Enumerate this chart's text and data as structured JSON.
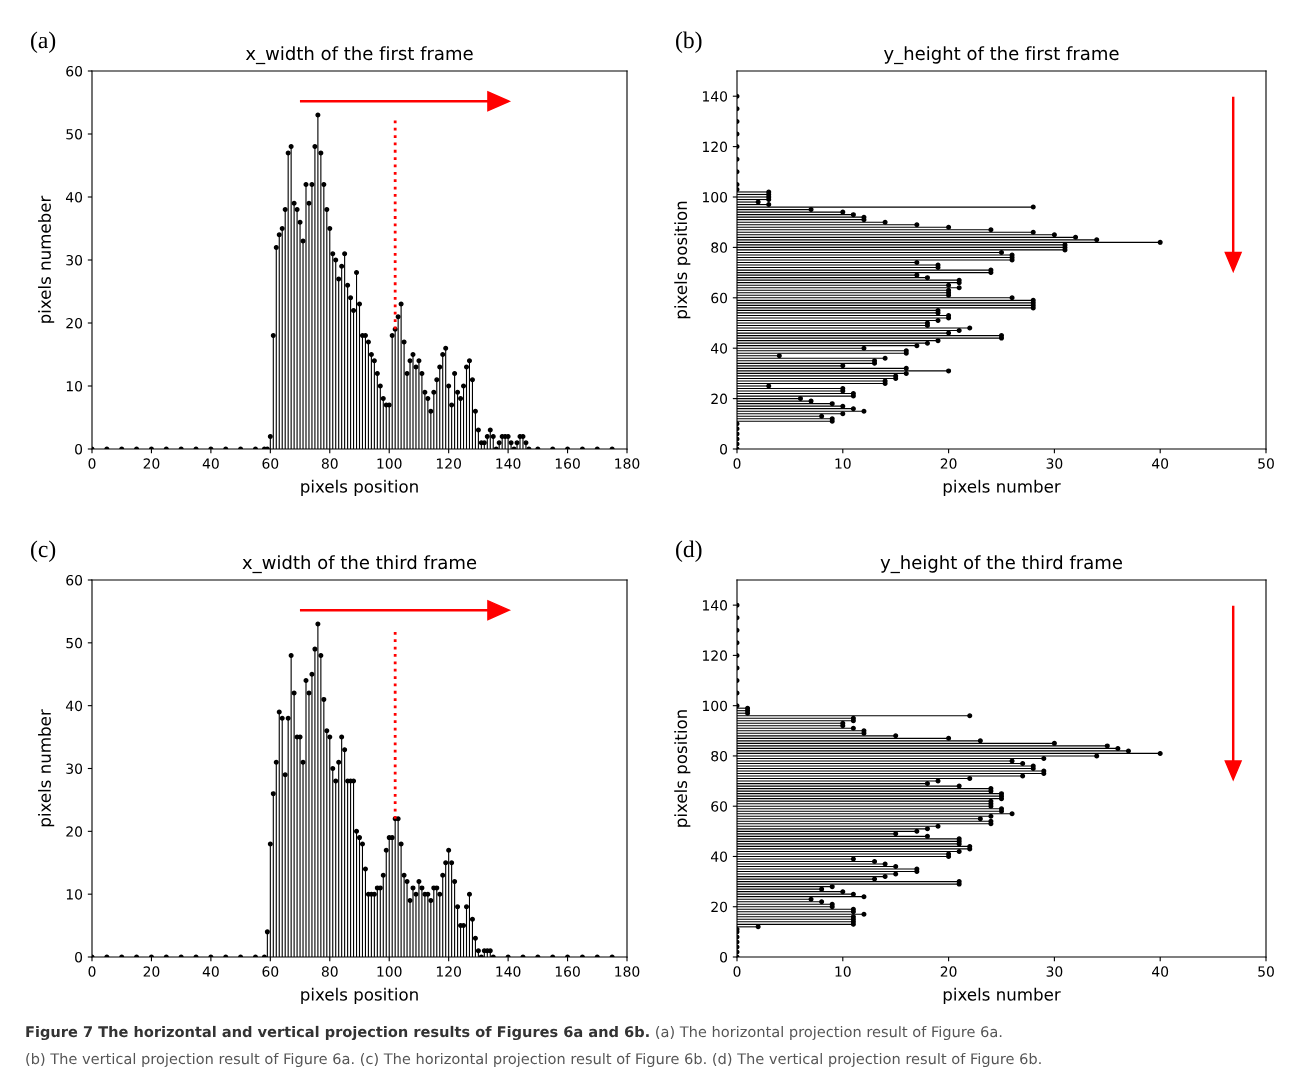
{
  "chart_data": [
    {
      "type": "lollipop",
      "title": "x_width of the first frame",
      "xlabel": "pixels position",
      "ylabel": "pixels numeber",
      "annotations": [
        "(a)"
      ],
      "x": [
        0,
        5,
        10,
        15,
        20,
        25,
        30,
        35,
        40,
        45,
        50,
        55,
        58,
        59,
        60,
        61,
        62,
        63,
        64,
        65,
        66,
        67,
        68,
        69,
        70,
        71,
        72,
        73,
        74,
        75,
        76,
        77,
        78,
        79,
        80,
        81,
        82,
        83,
        84,
        85,
        86,
        87,
        88,
        89,
        90,
        91,
        92,
        93,
        94,
        95,
        96,
        97,
        98,
        99,
        100,
        101,
        102,
        103,
        104,
        105,
        106,
        107,
        108,
        109,
        110,
        111,
        112,
        113,
        114,
        115,
        116,
        117,
        118,
        119,
        120,
        121,
        122,
        123,
        124,
        125,
        126,
        127,
        128,
        129,
        130,
        131,
        132,
        133,
        134,
        135,
        136,
        137,
        138,
        139,
        140,
        141,
        142,
        143,
        144,
        145,
        146,
        147,
        150,
        155,
        160,
        165,
        170,
        175
      ],
      "series": [
        {
          "color": "#000000",
          "values": [
            0,
            0,
            0,
            0,
            0,
            0,
            0,
            0,
            0,
            0,
            0,
            0,
            0,
            0,
            2,
            18,
            32,
            34,
            35,
            38,
            47,
            48,
            39,
            38,
            36,
            33,
            42,
            39,
            42,
            48,
            53,
            47,
            42,
            38,
            35,
            31,
            30,
            27,
            29,
            31,
            26,
            24,
            22,
            28,
            23,
            18,
            18,
            17,
            15,
            14,
            12,
            10,
            8,
            7,
            7,
            18,
            19,
            21,
            23,
            17,
            12,
            14,
            15,
            13,
            14,
            12,
            9,
            8,
            6,
            9,
            11,
            13,
            15,
            16,
            10,
            7,
            12,
            9,
            8,
            10,
            13,
            14,
            11,
            6,
            3,
            1,
            1,
            2,
            3,
            2,
            0,
            1,
            2,
            2,
            2,
            1,
            0,
            1,
            2,
            2,
            1,
            0,
            0,
            0,
            0,
            0,
            0,
            0
          ]
        }
      ],
      "xlim": [
        0,
        180
      ],
      "xticks": [
        0,
        20,
        40,
        60,
        80,
        100,
        120,
        140,
        160,
        180
      ],
      "ylim": [
        0,
        60
      ],
      "yticks": [
        0,
        10,
        20,
        30,
        40,
        50,
        60
      ],
      "ref_lines": [
        {
          "axis": "x",
          "value": 102,
          "color": "#ff0000",
          "line_style": "dotted"
        }
      ],
      "marker": "circle",
      "grid": false
    },
    {
      "type": "lollipop",
      "orientation": "horizontal",
      "title": "y_height of the first frame",
      "xlabel": "pixels number",
      "ylabel": "pixels position",
      "annotations": [
        "(b)"
      ],
      "x": [
        0,
        2,
        4,
        6,
        8,
        10,
        11,
        12,
        13,
        14,
        15,
        16,
        17,
        18,
        19,
        20,
        21,
        22,
        23,
        24,
        25,
        26,
        27,
        28,
        29,
        30,
        31,
        32,
        33,
        34,
        35,
        36,
        37,
        38,
        39,
        40,
        41,
        42,
        43,
        44,
        45,
        46,
        47,
        48,
        49,
        50,
        51,
        52,
        53,
        54,
        55,
        56,
        57,
        58,
        59,
        60,
        61,
        62,
        63,
        64,
        65,
        66,
        67,
        68,
        69,
        70,
        71,
        72,
        73,
        74,
        75,
        76,
        77,
        78,
        79,
        80,
        81,
        82,
        83,
        84,
        85,
        86,
        87,
        88,
        89,
        90,
        91,
        92,
        93,
        94,
        95,
        96,
        97,
        98,
        99,
        100,
        101,
        102,
        103,
        105,
        110,
        115,
        120,
        125,
        130,
        135,
        140
      ],
      "series": [
        {
          "color": "#000000",
          "values": [
            0,
            0,
            0,
            0,
            0,
            0,
            9,
            9,
            8,
            10,
            12,
            11,
            10,
            9,
            7,
            6,
            11,
            11,
            10,
            10,
            3,
            14,
            14,
            15,
            15,
            16,
            20,
            16,
            10,
            13,
            13,
            14,
            4,
            16,
            16,
            12,
            17,
            18,
            19,
            25,
            25,
            20,
            21,
            22,
            18,
            18,
            19,
            20,
            20,
            19,
            19,
            28,
            28,
            28,
            28,
            26,
            20,
            20,
            20,
            21,
            20,
            21,
            21,
            18,
            17,
            24,
            24,
            19,
            19,
            17,
            26,
            26,
            26,
            25,
            31,
            31,
            31,
            40,
            34,
            32,
            30,
            28,
            24,
            20,
            17,
            14,
            12,
            12,
            11,
            10,
            7,
            28,
            3,
            2,
            3,
            3,
            3,
            3,
            0,
            0,
            0,
            0,
            0,
            0,
            0,
            0,
            0
          ]
        }
      ],
      "xlim": [
        0,
        50
      ],
      "xticks": [
        0,
        10,
        20,
        30,
        40,
        50
      ],
      "ylim": [
        0,
        150
      ],
      "yticks": [
        0,
        20,
        40,
        60,
        80,
        100,
        120,
        140
      ],
      "marker": "circle",
      "grid": false
    },
    {
      "type": "lollipop",
      "title": "x_width of the third frame",
      "xlabel": "pixels position",
      "ylabel": "pixels number",
      "annotations": [
        "(c)"
      ],
      "x": [
        0,
        5,
        10,
        15,
        20,
        25,
        30,
        35,
        40,
        45,
        50,
        55,
        58,
        59,
        60,
        61,
        62,
        63,
        64,
        65,
        66,
        67,
        68,
        69,
        70,
        71,
        72,
        73,
        74,
        75,
        76,
        77,
        78,
        79,
        80,
        81,
        82,
        83,
        84,
        85,
        86,
        87,
        88,
        89,
        90,
        91,
        92,
        93,
        94,
        95,
        96,
        97,
        98,
        99,
        100,
        101,
        102,
        103,
        104,
        105,
        106,
        107,
        108,
        109,
        110,
        111,
        112,
        113,
        114,
        115,
        116,
        117,
        118,
        119,
        120,
        121,
        122,
        123,
        124,
        125,
        126,
        127,
        128,
        129,
        130,
        131,
        132,
        133,
        134,
        135,
        140,
        145,
        150,
        155,
        160,
        165,
        170,
        175
      ],
      "series": [
        {
          "color": "#000000",
          "values": [
            0,
            0,
            0,
            0,
            0,
            0,
            0,
            0,
            0,
            0,
            0,
            0,
            0,
            4,
            18,
            26,
            31,
            39,
            38,
            29,
            38,
            48,
            42,
            35,
            35,
            31,
            44,
            42,
            45,
            49,
            53,
            48,
            41,
            36,
            35,
            30,
            28,
            31,
            35,
            33,
            28,
            28,
            28,
            20,
            19,
            18,
            14,
            10,
            10,
            10,
            11,
            11,
            13,
            17,
            19,
            19,
            22,
            22,
            18,
            13,
            12,
            9,
            11,
            10,
            12,
            11,
            10,
            10,
            9,
            11,
            11,
            10,
            13,
            15,
            17,
            15,
            12,
            8,
            5,
            5,
            8,
            10,
            6,
            3,
            1,
            0,
            1,
            1,
            1,
            0,
            0,
            0,
            0,
            0,
            0,
            0,
            0,
            0
          ]
        }
      ],
      "xlim": [
        0,
        180
      ],
      "xticks": [
        0,
        20,
        40,
        60,
        80,
        100,
        120,
        140,
        160,
        180
      ],
      "ylim": [
        0,
        60
      ],
      "yticks": [
        0,
        10,
        20,
        30,
        40,
        50,
        60
      ],
      "ref_lines": [
        {
          "axis": "x",
          "value": 102,
          "color": "#ff0000",
          "line_style": "dotted"
        }
      ],
      "marker": "circle",
      "grid": false
    },
    {
      "type": "lollipop",
      "orientation": "horizontal",
      "title": "y_height of the third frame",
      "xlabel": "pixels number",
      "ylabel": "pixels position",
      "annotations": [
        "(d)",
        "Figure 7 The horizontal and vertical projection results of Figures 6a and 6b.",
        "(a) The horizontal projection result of Figure 6a.",
        "(b) The vertical projection result of Figure 6a. (c) The horizontal projection result of Figure 6b. (d) The vertical projection result of Figure 6b."
      ],
      "x": [
        0,
        2,
        4,
        6,
        8,
        10,
        11,
        12,
        13,
        14,
        15,
        16,
        17,
        18,
        19,
        20,
        21,
        22,
        23,
        24,
        25,
        26,
        27,
        28,
        29,
        30,
        31,
        32,
        33,
        34,
        35,
        36,
        37,
        38,
        39,
        40,
        41,
        42,
        43,
        44,
        45,
        46,
        47,
        48,
        49,
        50,
        51,
        52,
        53,
        54,
        55,
        56,
        57,
        58,
        59,
        60,
        61,
        62,
        63,
        64,
        65,
        66,
        67,
        68,
        69,
        70,
        71,
        72,
        73,
        74,
        75,
        76,
        77,
        78,
        79,
        80,
        81,
        82,
        83,
        84,
        85,
        86,
        87,
        88,
        89,
        90,
        91,
        92,
        93,
        94,
        95,
        96,
        97,
        98,
        99,
        100,
        105,
        110,
        115,
        120,
        125,
        130,
        135,
        140
      ],
      "series": [
        {
          "color": "#000000",
          "values": [
            0,
            0,
            0,
            0,
            0,
            0,
            0,
            2,
            11,
            11,
            11,
            11,
            12,
            11,
            11,
            9,
            9,
            8,
            7,
            12,
            11,
            10,
            8,
            9,
            21,
            21,
            13,
            14,
            15,
            17,
            17,
            15,
            14,
            13,
            11,
            20,
            20,
            21,
            22,
            22,
            21,
            21,
            21,
            18,
            15,
            17,
            18,
            19,
            24,
            24,
            23,
            24,
            26,
            25,
            25,
            24,
            24,
            24,
            25,
            25,
            25,
            24,
            24,
            21,
            18,
            19,
            22,
            27,
            29,
            29,
            28,
            28,
            27,
            26,
            29,
            34,
            40,
            37,
            36,
            35,
            30,
            23,
            20,
            15,
            12,
            12,
            11,
            10,
            10,
            11,
            11,
            22,
            1,
            1,
            1,
            0,
            0,
            0,
            0,
            0,
            0,
            0,
            0,
            0
          ]
        }
      ],
      "xlim": [
        0,
        50
      ],
      "xticks": [
        0,
        10,
        20,
        30,
        40,
        50
      ],
      "ylim": [
        0,
        150
      ],
      "yticks": [
        0,
        20,
        40,
        60,
        80,
        100,
        120,
        140
      ],
      "marker": "circle",
      "grid": false
    }
  ]
}
